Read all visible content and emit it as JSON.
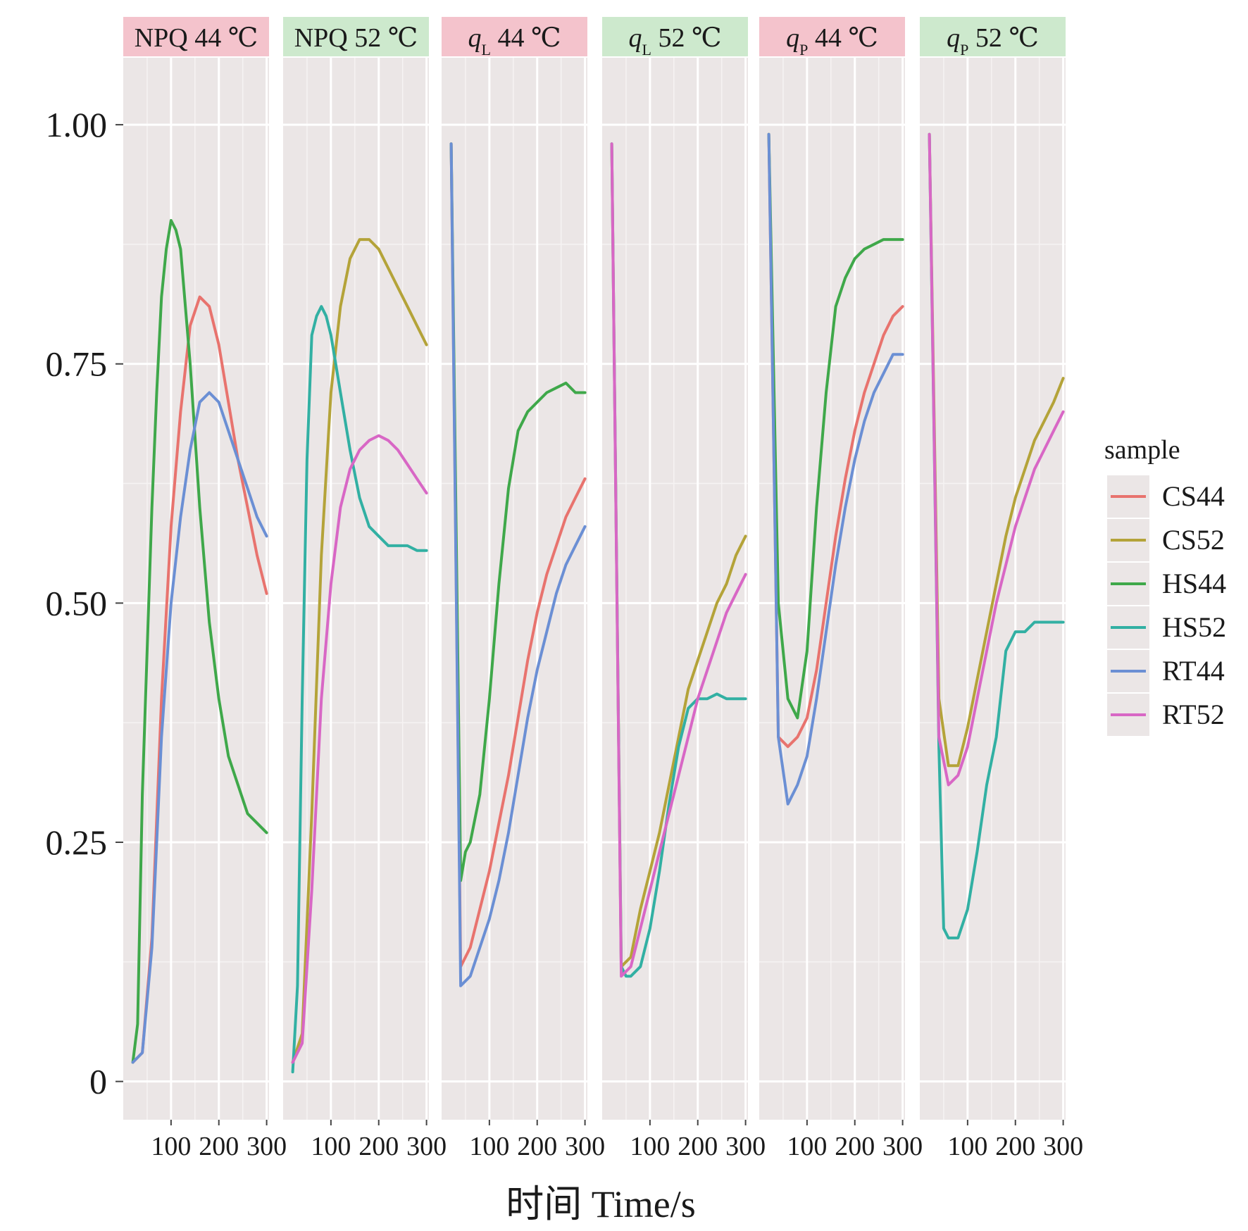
{
  "chart_data": {
    "type": "line",
    "facet_labels": [
      {
        "prefix": "NPQ",
        "sub": "",
        "temp": "44 ℃",
        "color": "#f4c3cc"
      },
      {
        "prefix": "NPQ",
        "sub": "",
        "temp": "52 ℃",
        "color": "#cde9cd"
      },
      {
        "prefix": "q",
        "sub": "L",
        "temp": "44 ℃",
        "color": "#f4c3cc"
      },
      {
        "prefix": "q",
        "sub": "L",
        "temp": "52 ℃",
        "color": "#cde9cd"
      },
      {
        "prefix": "q",
        "sub": "P",
        "temp": "44 ℃",
        "color": "#f4c3cc"
      },
      {
        "prefix": "q",
        "sub": "P",
        "temp": "52 ℃",
        "color": "#cde9cd"
      }
    ],
    "xlabel": "时间  Time/s",
    "xlim": [
      0,
      305
    ],
    "ylim": [
      -0.04,
      1.07
    ],
    "x_ticks": [
      100,
      200,
      300
    ],
    "y_ticks": [
      0,
      0.25,
      0.5,
      0.75,
      1.0
    ],
    "y_tick_labels": [
      "0",
      "0.25",
      "0.50",
      "0.75",
      "1.00"
    ],
    "grid": true,
    "legend": {
      "title": "sample",
      "position": "right"
    },
    "series_colors": {
      "CS44": "#e8736e",
      "CS52": "#b4a339",
      "HS44": "#3fa84a",
      "HS52": "#32b0a3",
      "RT44": "#6b8fd4",
      "RT52": "#d867c5"
    },
    "legend_entries": [
      "CS44",
      "CS52",
      "HS44",
      "HS52",
      "RT44",
      "RT52"
    ],
    "panels": [
      {
        "series": [
          {
            "name": "CS44",
            "x": [
              20,
              40,
              60,
              80,
              100,
              120,
              140,
              160,
              180,
              200,
              220,
              240,
              260,
              280,
              300
            ],
            "y": [
              0.02,
              0.03,
              0.15,
              0.4,
              0.58,
              0.7,
              0.79,
              0.82,
              0.81,
              0.77,
              0.71,
              0.65,
              0.6,
              0.55,
              0.51
            ]
          },
          {
            "name": "HS44",
            "x": [
              20,
              30,
              40,
              50,
              60,
              70,
              80,
              90,
              100,
              110,
              120,
              140,
              160,
              180,
              200,
              220,
              240,
              260,
              280,
              300
            ],
            "y": [
              0.02,
              0.06,
              0.3,
              0.45,
              0.6,
              0.72,
              0.82,
              0.87,
              0.9,
              0.89,
              0.87,
              0.75,
              0.6,
              0.48,
              0.4,
              0.34,
              0.31,
              0.28,
              0.27,
              0.26
            ]
          },
          {
            "name": "RT44",
            "x": [
              20,
              40,
              60,
              80,
              100,
              120,
              140,
              160,
              180,
              200,
              220,
              240,
              260,
              280,
              300
            ],
            "y": [
              0.02,
              0.03,
              0.14,
              0.36,
              0.5,
              0.59,
              0.66,
              0.71,
              0.72,
              0.71,
              0.68,
              0.65,
              0.62,
              0.59,
              0.57
            ]
          }
        ]
      },
      {
        "series": [
          {
            "name": "CS52",
            "x": [
              20,
              40,
              60,
              80,
              100,
              120,
              140,
              160,
              180,
              200,
              220,
              240,
              260,
              280,
              300
            ],
            "y": [
              0.02,
              0.05,
              0.28,
              0.55,
              0.72,
              0.81,
              0.86,
              0.88,
              0.88,
              0.87,
              0.85,
              0.83,
              0.81,
              0.79,
              0.77
            ]
          },
          {
            "name": "HS52",
            "x": [
              20,
              30,
              40,
              50,
              60,
              70,
              80,
              90,
              100,
              110,
              120,
              140,
              160,
              180,
              200,
              220,
              240,
              260,
              280,
              300
            ],
            "y": [
              0.01,
              0.1,
              0.4,
              0.65,
              0.78,
              0.8,
              0.81,
              0.8,
              0.78,
              0.75,
              0.72,
              0.66,
              0.61,
              0.58,
              0.57,
              0.56,
              0.56,
              0.56,
              0.555,
              0.555
            ]
          },
          {
            "name": "RT52",
            "x": [
              20,
              40,
              60,
              80,
              100,
              120,
              140,
              160,
              180,
              200,
              220,
              240,
              260,
              280,
              300
            ],
            "y": [
              0.02,
              0.04,
              0.2,
              0.4,
              0.52,
              0.6,
              0.64,
              0.66,
              0.67,
              0.675,
              0.67,
              0.66,
              0.645,
              0.63,
              0.615
            ]
          }
        ]
      },
      {
        "series": [
          {
            "name": "CS44",
            "x": [
              20,
              40,
              60,
              80,
              100,
              120,
              140,
              160,
              180,
              200,
              220,
              240,
              260,
              280,
              300
            ],
            "y": [
              0.98,
              0.12,
              0.14,
              0.18,
              0.22,
              0.27,
              0.32,
              0.38,
              0.44,
              0.49,
              0.53,
              0.56,
              0.59,
              0.61,
              0.63
            ]
          },
          {
            "name": "HS44",
            "x": [
              20,
              40,
              50,
              60,
              80,
              100,
              120,
              140,
              160,
              180,
              200,
              220,
              240,
              260,
              280,
              300
            ],
            "y": [
              0.98,
              0.21,
              0.24,
              0.25,
              0.3,
              0.4,
              0.52,
              0.62,
              0.68,
              0.7,
              0.71,
              0.72,
              0.725,
              0.73,
              0.72,
              0.72
            ]
          },
          {
            "name": "RT44",
            "x": [
              20,
              40,
              60,
              80,
              100,
              120,
              140,
              160,
              180,
              200,
              220,
              240,
              260,
              280,
              300
            ],
            "y": [
              0.98,
              0.1,
              0.11,
              0.14,
              0.17,
              0.21,
              0.26,
              0.32,
              0.38,
              0.43,
              0.47,
              0.51,
              0.54,
              0.56,
              0.58
            ]
          }
        ]
      },
      {
        "series": [
          {
            "name": "CS52",
            "x": [
              20,
              40,
              60,
              80,
              100,
              120,
              140,
              160,
              180,
              200,
              220,
              240,
              260,
              280,
              300
            ],
            "y": [
              0.98,
              0.12,
              0.13,
              0.18,
              0.22,
              0.26,
              0.31,
              0.36,
              0.41,
              0.44,
              0.47,
              0.5,
              0.52,
              0.55,
              0.57
            ]
          },
          {
            "name": "HS52",
            "x": [
              20,
              40,
              50,
              60,
              80,
              100,
              120,
              140,
              160,
              180,
              200,
              220,
              240,
              260,
              280,
              300
            ],
            "y": [
              0.98,
              0.12,
              0.11,
              0.11,
              0.12,
              0.16,
              0.22,
              0.29,
              0.35,
              0.39,
              0.4,
              0.4,
              0.405,
              0.4,
              0.4,
              0.4
            ]
          },
          {
            "name": "RT52",
            "x": [
              20,
              40,
              60,
              80,
              100,
              120,
              140,
              160,
              180,
              200,
              220,
              240,
              260,
              280,
              300
            ],
            "y": [
              0.98,
              0.11,
              0.12,
              0.16,
              0.2,
              0.24,
              0.28,
              0.32,
              0.36,
              0.4,
              0.43,
              0.46,
              0.49,
              0.51,
              0.53
            ]
          }
        ]
      },
      {
        "series": [
          {
            "name": "CS44",
            "x": [
              20,
              40,
              60,
              80,
              100,
              120,
              140,
              160,
              180,
              200,
              220,
              240,
              260,
              280,
              300
            ],
            "y": [
              0.99,
              0.36,
              0.35,
              0.36,
              0.38,
              0.43,
              0.5,
              0.57,
              0.63,
              0.68,
              0.72,
              0.75,
              0.78,
              0.8,
              0.81
            ]
          },
          {
            "name": "HS44",
            "x": [
              20,
              40,
              60,
              80,
              100,
              120,
              140,
              160,
              180,
              200,
              220,
              240,
              260,
              280,
              300
            ],
            "y": [
              0.99,
              0.5,
              0.4,
              0.38,
              0.45,
              0.6,
              0.72,
              0.81,
              0.84,
              0.86,
              0.87,
              0.875,
              0.88,
              0.88,
              0.88
            ]
          },
          {
            "name": "RT44",
            "x": [
              20,
              40,
              60,
              80,
              100,
              120,
              140,
              160,
              180,
              200,
              220,
              240,
              260,
              280,
              300
            ],
            "y": [
              0.99,
              0.36,
              0.29,
              0.31,
              0.34,
              0.4,
              0.47,
              0.54,
              0.6,
              0.65,
              0.69,
              0.72,
              0.74,
              0.76,
              0.76
            ]
          }
        ]
      },
      {
        "series": [
          {
            "name": "CS52",
            "x": [
              20,
              40,
              60,
              80,
              100,
              120,
              140,
              160,
              180,
              200,
              220,
              240,
              260,
              280,
              300
            ],
            "y": [
              0.99,
              0.4,
              0.33,
              0.33,
              0.37,
              0.42,
              0.47,
              0.52,
              0.57,
              0.61,
              0.64,
              0.67,
              0.69,
              0.71,
              0.735
            ]
          },
          {
            "name": "HS52",
            "x": [
              20,
              40,
              50,
              60,
              80,
              100,
              120,
              140,
              160,
              180,
              200,
              220,
              240,
              260,
              280,
              300
            ],
            "y": [
              0.99,
              0.35,
              0.16,
              0.15,
              0.15,
              0.18,
              0.24,
              0.31,
              0.36,
              0.45,
              0.47,
              0.47,
              0.48,
              0.48,
              0.48,
              0.48
            ]
          },
          {
            "name": "RT52",
            "x": [
              20,
              40,
              60,
              80,
              100,
              120,
              140,
              160,
              180,
              200,
              220,
              240,
              260,
              280,
              300
            ],
            "y": [
              0.99,
              0.36,
              0.31,
              0.32,
              0.35,
              0.4,
              0.45,
              0.5,
              0.54,
              0.58,
              0.61,
              0.64,
              0.66,
              0.68,
              0.7
            ]
          }
        ]
      }
    ]
  }
}
